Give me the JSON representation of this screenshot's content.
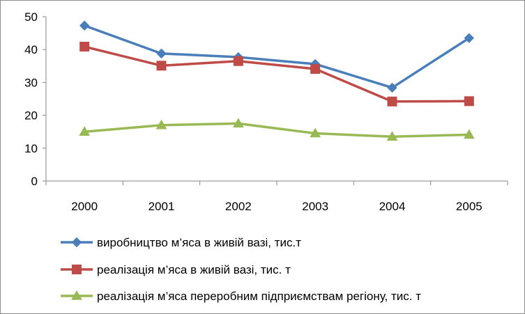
{
  "chart_data": {
    "type": "line",
    "categories": [
      "2000",
      "2001",
      "2002",
      "2003",
      "2004",
      "2005"
    ],
    "ylim": [
      0,
      50
    ],
    "yticks": [
      0,
      10,
      20,
      30,
      40,
      50
    ],
    "grid": false,
    "legend_position": "bottom",
    "series": [
      {
        "name": "виробництво м’яса в живій вазі, тис.т",
        "values": [
          47.3,
          38.8,
          37.7,
          35.6,
          28.4,
          43.5
        ],
        "color": "#4a7ebb",
        "marker": "diamond"
      },
      {
        "name": "реалізація м’яса в живій вазі, тис. т",
        "values": [
          40.9,
          35.1,
          36.5,
          34.1,
          24.2,
          24.3
        ],
        "color": "#be4b48",
        "marker": "square"
      },
      {
        "name": "реалізація  м’яса переробним підприємствам регіону, тис. т",
        "values": [
          15.0,
          17.0,
          17.5,
          14.5,
          13.5,
          14.1
        ],
        "color": "#98b954",
        "marker": "triangle"
      }
    ]
  }
}
